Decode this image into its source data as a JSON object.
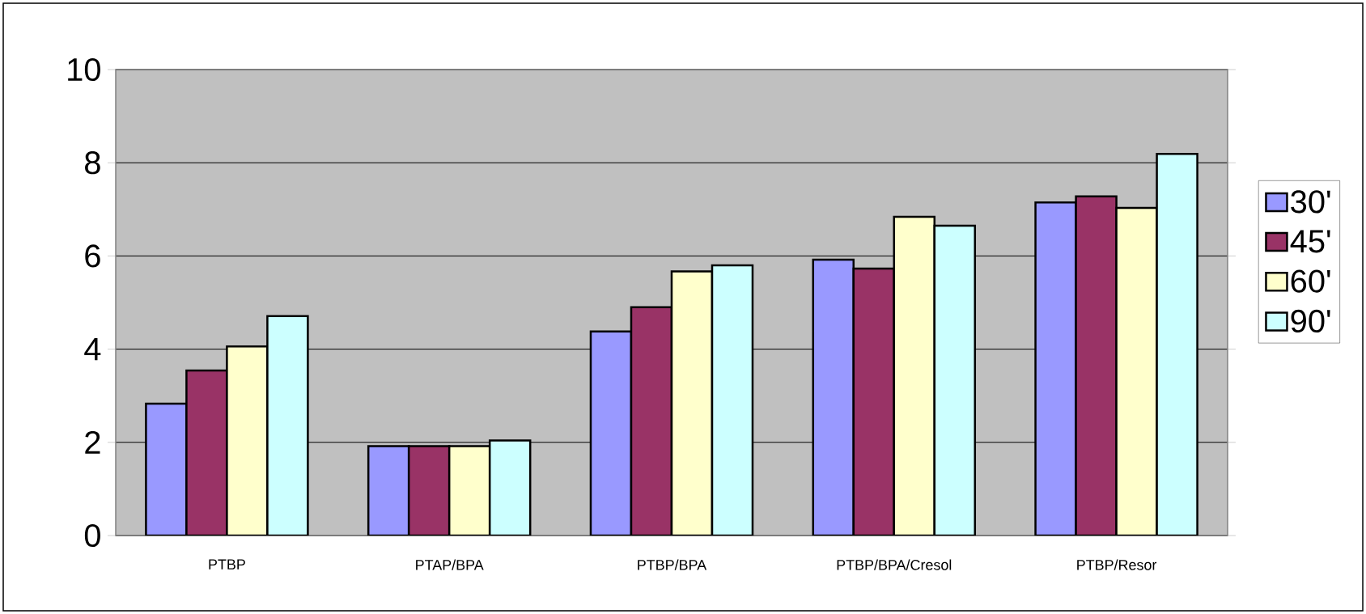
{
  "chart_data": {
    "type": "bar",
    "categories": [
      "PTBP",
      "PTAP/BPA",
      "PTBP/BPA",
      "PTBP/BPA/Cresol",
      "PTBP/Resor"
    ],
    "series": [
      {
        "name": "30'",
        "color": "#9999ff",
        "values": [
          2.83,
          1.92,
          4.38,
          5.92,
          7.15
        ]
      },
      {
        "name": "45'",
        "color": "#993366",
        "values": [
          3.54,
          1.92,
          4.9,
          5.73,
          7.28
        ]
      },
      {
        "name": "60'",
        "color": "#ffffcc",
        "values": [
          4.06,
          1.92,
          5.67,
          6.84,
          7.03
        ]
      },
      {
        "name": "90'",
        "color": "#ccffff",
        "values": [
          4.71,
          2.04,
          5.8,
          6.65,
          8.19
        ]
      }
    ],
    "ylim": [
      0,
      10
    ],
    "yticks": [
      0,
      2,
      4,
      6,
      8,
      10
    ],
    "grid": "y",
    "legend": "right"
  }
}
